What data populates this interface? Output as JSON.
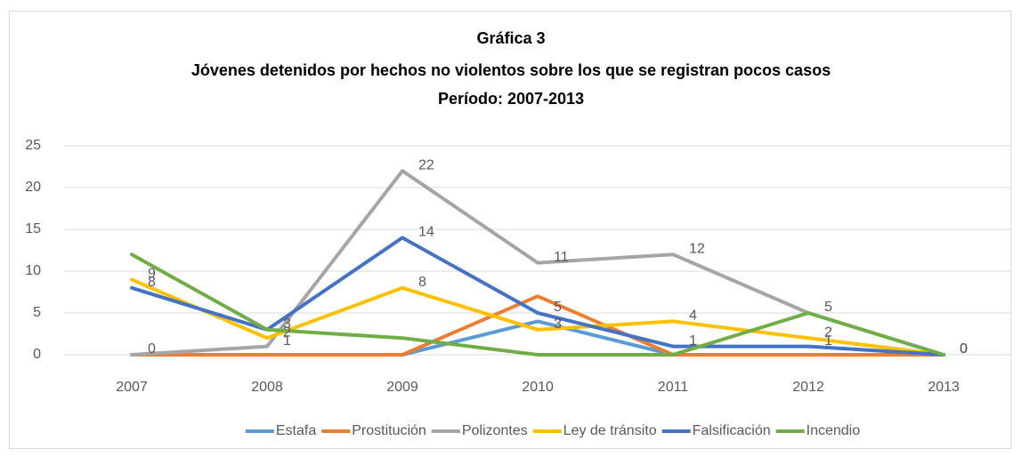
{
  "chart_data": {
    "type": "line",
    "title": "Gráfica 3",
    "subtitle": "Jóvenes detenidos por hechos no violentos sobre los que se registran pocos casos",
    "period": "Período: 2007-2013",
    "categories": [
      "2007",
      "2008",
      "2009",
      "2010",
      "2011",
      "2012",
      "2013"
    ],
    "series": [
      {
        "name": "Estafa",
        "color": "#5b9bd5",
        "values": [
          0,
          0,
          0,
          4,
          0,
          0,
          0
        ],
        "labels": false
      },
      {
        "name": "Prostitución",
        "color": "#ed7d31",
        "values": [
          0,
          0,
          0,
          7,
          0,
          0,
          0
        ],
        "labels": false
      },
      {
        "name": "Polizontes",
        "color": "#a5a5a5",
        "values": [
          0,
          1,
          22,
          11,
          12,
          5,
          0
        ],
        "labels": true
      },
      {
        "name": "Ley de  tránsito",
        "color": "#ffc000",
        "values": [
          9,
          2,
          8,
          3,
          4,
          2,
          0
        ],
        "labels": true
      },
      {
        "name": "Falsificación",
        "color": "#4472c4",
        "values": [
          8,
          3,
          14,
          5,
          1,
          1,
          0
        ],
        "labels": true
      },
      {
        "name": "Incendio",
        "color": "#70ad47",
        "values": [
          12,
          3,
          2,
          0,
          0,
          5,
          0
        ],
        "labels": false
      }
    ],
    "ylim": [
      0,
      25
    ],
    "yticks": [
      0,
      5,
      10,
      15,
      20,
      25
    ],
    "grid": true,
    "legend": "bottom"
  }
}
